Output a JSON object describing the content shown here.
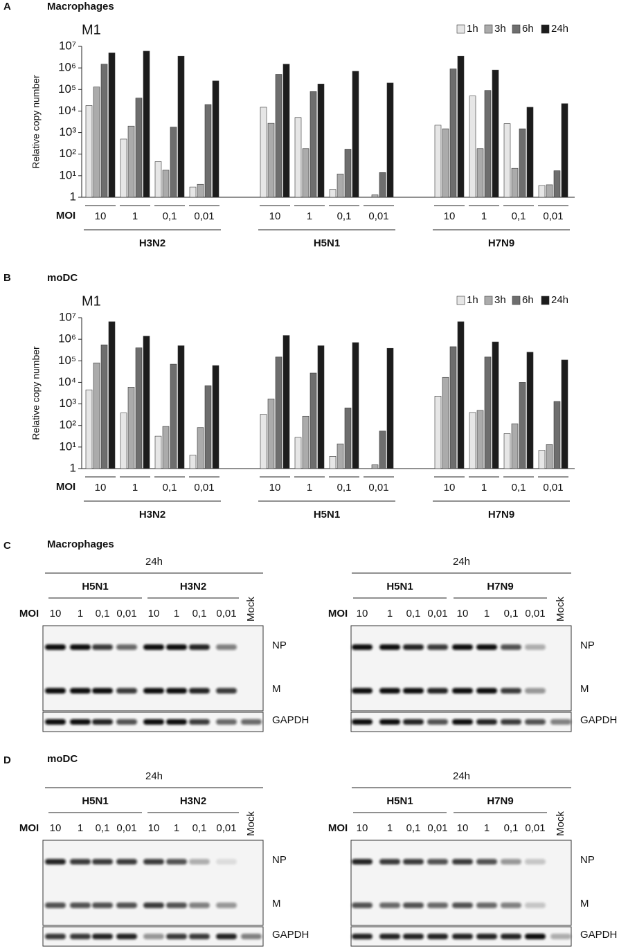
{
  "chart_data": [
    {
      "type": "bar",
      "panel": "A",
      "title": "Macrophages",
      "subtitle": "M1",
      "ylabel": "Relative copy number",
      "xlabel": "MOI",
      "log_scale": true,
      "legend": "top-right",
      "categories": [
        "10",
        "1",
        "0,1",
        "0,01",
        "10",
        "1",
        "0,1",
        "0,01",
        "10",
        "1",
        "0,1",
        "0,01"
      ],
      "groups": [
        "H3N2",
        "H5N1",
        "H7N9"
      ],
      "ylim": [
        1,
        10000000
      ],
      "yticks": [
        1,
        {
          "value": 10,
          "label": "10¹"
        },
        {
          "value": 100,
          "label": "10²"
        },
        {
          "value": 1000,
          "label": "10³"
        },
        {
          "value": 10000,
          "label": "10⁴"
        },
        {
          "value": 100000,
          "label": "10⁵"
        },
        {
          "value": 1000000,
          "label": "10⁶"
        },
        {
          "value": 10000000,
          "label": "10⁷"
        }
      ],
      "series": [
        {
          "name": "1h",
          "color": "#e6e6e6",
          "values": [
            18000,
            500,
            45,
            3,
            15000,
            5000,
            2.3,
            1,
            2200,
            50000,
            2600,
            3.5
          ]
        },
        {
          "name": "3h",
          "color": "#ababab",
          "values": [
            130000,
            2000,
            18,
            4,
            2700,
            180,
            12,
            1.3,
            1500,
            180,
            22,
            3.8
          ]
        },
        {
          "name": "6h",
          "color": "#6e6e6e",
          "values": [
            1500000,
            40000,
            1800,
            20000,
            500000,
            80000,
            170,
            14,
            900000,
            90000,
            1500,
            17
          ]
        },
        {
          "name": "24h",
          "color": "#1c1c1c",
          "values": [
            5000000,
            6000000,
            3500000,
            250000,
            1500000,
            180000,
            700000,
            200000,
            3500000,
            800000,
            15000,
            22000
          ]
        }
      ]
    },
    {
      "type": "bar",
      "panel": "B",
      "title": "moDC",
      "subtitle": "M1",
      "ylabel": "Relative copy number",
      "xlabel": "MOI",
      "log_scale": true,
      "legend": "top-right",
      "categories": [
        "10",
        "1",
        "0,1",
        "0,01",
        "10",
        "1",
        "0,1",
        "0,01",
        "10",
        "1",
        "0,1",
        "0,01"
      ],
      "groups": [
        "H3N2",
        "H5N1",
        "H7N9"
      ],
      "ylim": [
        1,
        10000000
      ],
      "yticks": [
        1,
        {
          "value": 10,
          "label": "10¹"
        },
        {
          "value": 100,
          "label": "10²"
        },
        {
          "value": 1000,
          "label": "10³"
        },
        {
          "value": 10000,
          "label": "10⁴"
        },
        {
          "value": 100000,
          "label": "10⁵"
        },
        {
          "value": 1000000,
          "label": "10⁶"
        },
        {
          "value": 10000000,
          "label": "10⁷"
        }
      ],
      "series": [
        {
          "name": "1h",
          "color": "#e6e6e6",
          "values": [
            4500,
            380,
            32,
            4.2,
            330,
            28,
            3.7,
            1,
            2300,
            400,
            42,
            7
          ]
        },
        {
          "name": "3h",
          "color": "#ababab",
          "values": [
            80000,
            6000,
            90,
            80,
            1700,
            270,
            14,
            1.5,
            17000,
            500,
            120,
            13
          ]
        },
        {
          "name": "6h",
          "color": "#6e6e6e",
          "values": [
            550000,
            400000,
            70000,
            7000,
            150000,
            27000,
            650,
            55,
            450000,
            150000,
            10000,
            1300
          ]
        },
        {
          "name": "24h",
          "color": "#1c1c1c",
          "values": [
            6500000,
            1400000,
            500000,
            60000,
            1500000,
            500000,
            700000,
            380000,
            6500000,
            750000,
            250000,
            110000
          ]
        }
      ]
    }
  ],
  "blots": [
    {
      "panel": "C",
      "title": "Macrophages",
      "gels": [
        {
          "time": "24h",
          "strains": [
            "H5N1",
            "H3N2"
          ],
          "moi_label": "MOI",
          "lanes": [
            "10",
            "1",
            "0,1",
            "0,01",
            "10",
            "1",
            "0,1",
            "0,01",
            "Mock"
          ],
          "bands": [
            "NP",
            "M",
            "GAPDH"
          ]
        },
        {
          "time": "24h",
          "strains": [
            "H5N1",
            "H7N9"
          ],
          "moi_label": "MOI",
          "lanes": [
            "10",
            "1",
            "0,1",
            "0,01",
            "10",
            "1",
            "0,1",
            "0,01",
            "Mock"
          ],
          "bands": [
            "NP",
            "M",
            "GAPDH"
          ]
        }
      ]
    },
    {
      "panel": "D",
      "title": "moDC",
      "gels": [
        {
          "time": "24h",
          "strains": [
            "H5N1",
            "H3N2"
          ],
          "moi_label": "MOI",
          "lanes": [
            "10",
            "1",
            "0,1",
            "0,01",
            "10",
            "1",
            "0,1",
            "0,01",
            "Mock"
          ],
          "bands": [
            "NP",
            "M",
            "GAPDH"
          ]
        },
        {
          "time": "24h",
          "strains": [
            "H5N1",
            "H7N9"
          ],
          "moi_label": "MOI",
          "lanes": [
            "10",
            "1",
            "0,1",
            "0,01",
            "10",
            "1",
            "0,1",
            "0,01",
            "Mock"
          ],
          "bands": [
            "NP",
            "M",
            "GAPDH"
          ]
        }
      ]
    }
  ]
}
